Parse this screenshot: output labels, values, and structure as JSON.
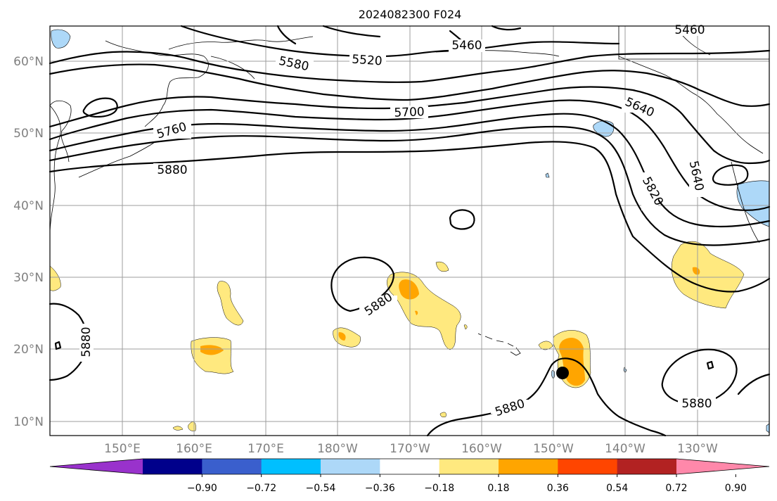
{
  "title": "2024082300 F024",
  "lat_labels": [
    "10°N",
    "20°N",
    "30°N",
    "40°N",
    "50°N",
    "60°N"
  ],
  "lon_labels": [
    "150°E",
    "160°E",
    "170°E",
    "180°W",
    "170°W",
    "160°W",
    "150°W",
    "140°W",
    "130°W"
  ],
  "contour_labels": [
    "5460",
    "5460",
    "5520",
    "5580",
    "5640",
    "5640",
    "5700",
    "5760",
    "5820",
    "5880",
    "5880",
    "5880",
    "5880"
  ],
  "colorbar": {
    "ticks": [
      "−0.90",
      "−0.72",
      "−0.54",
      "−0.36",
      "−0.18",
      "0.18",
      "0.36",
      "0.54",
      "0.72",
      "0.90"
    ],
    "colors": [
      "#9932cc",
      "#00008b",
      "#3a5fcd",
      "#00bfff",
      "#add8f8",
      "#ffffff",
      "#ffe97f",
      "#ffa500",
      "#ff4500",
      "#b22222",
      "#ff88aa"
    ]
  },
  "marker": {
    "label": "storm-position"
  }
}
